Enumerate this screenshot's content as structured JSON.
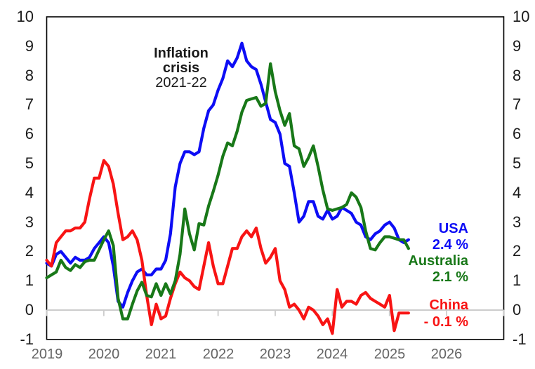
{
  "chart_data": {
    "type": "line",
    "title": "",
    "annotation": {
      "line1": "Inflation",
      "line2": "crisis",
      "line3": "2021-22"
    },
    "x_axis": {
      "frequency": "monthly",
      "start": "2019-01",
      "end": "2025-05",
      "axis_start_year": 2019,
      "axis_end_year": 2027,
      "tick_labels": [
        "2019",
        "2020",
        "2021",
        "2022",
        "2023",
        "2024",
        "2025",
        "2026"
      ]
    },
    "y_axis": {
      "min": -1,
      "max": 10,
      "tick_step": 1,
      "tick_labels": [
        "10",
        "9",
        "8",
        "7",
        "6",
        "5",
        "4",
        "3",
        "2",
        "1",
        "0",
        "-1"
      ],
      "labels_on_both_sides": true
    },
    "grid": "zero-line-only",
    "zero_line_color": "#cccccc",
    "axis_border_color": "#000000",
    "x_label_color": "#646464",
    "y_label_color": "#1a1a1a",
    "legend_position": "end-of-line-labels",
    "series": [
      {
        "key": "usa",
        "name": "USA",
        "color": "#0d0df5",
        "end_label": {
          "name": "USA",
          "value": "2.4 %"
        },
        "values": [
          1.6,
          1.5,
          1.9,
          2.0,
          1.8,
          1.6,
          1.8,
          1.7,
          1.7,
          1.8,
          2.1,
          2.3,
          2.5,
          2.3,
          1.5,
          0.3,
          0.1,
          0.6,
          1.0,
          1.3,
          1.4,
          1.2,
          1.2,
          1.4,
          1.4,
          1.7,
          2.6,
          4.2,
          5.0,
          5.4,
          5.4,
          5.3,
          5.4,
          6.2,
          6.8,
          7.0,
          7.5,
          7.9,
          8.5,
          8.3,
          8.6,
          9.1,
          8.5,
          8.3,
          8.2,
          7.7,
          7.1,
          6.5,
          6.4,
          6.0,
          5.0,
          4.9,
          4.0,
          3.0,
          3.2,
          3.7,
          3.7,
          3.2,
          3.1,
          3.4,
          3.1,
          3.2,
          3.5,
          3.4,
          3.3,
          3.0,
          2.9,
          2.5,
          2.4,
          2.6,
          2.7,
          2.9,
          3.0,
          2.8,
          2.4,
          2.3,
          2.4
        ]
      },
      {
        "key": "china",
        "name": "China",
        "color": "#f81414",
        "end_label": {
          "name": "China",
          "value": "- 0.1 %"
        },
        "values": [
          1.7,
          1.5,
          2.3,
          2.5,
          2.7,
          2.7,
          2.8,
          2.8,
          3.0,
          3.8,
          4.5,
          4.5,
          5.1,
          4.9,
          4.3,
          3.3,
          2.4,
          2.5,
          2.7,
          2.4,
          1.7,
          0.5,
          -0.5,
          0.2,
          -0.3,
          -0.2,
          0.4,
          0.9,
          1.3,
          1.1,
          1.0,
          0.8,
          0.7,
          1.5,
          2.3,
          1.5,
          0.9,
          0.9,
          1.5,
          2.1,
          2.1,
          2.5,
          2.7,
          2.5,
          2.8,
          2.1,
          1.6,
          1.8,
          2.1,
          1.0,
          0.7,
          0.1,
          0.2,
          0.0,
          -0.3,
          0.1,
          0.0,
          -0.2,
          -0.5,
          -0.3,
          -0.8,
          0.7,
          0.1,
          0.3,
          0.3,
          0.2,
          0.5,
          0.6,
          0.4,
          0.3,
          0.2,
          0.1,
          0.5,
          -0.7,
          -0.1,
          -0.1,
          -0.1
        ]
      },
      {
        "key": "australia",
        "name": "Australia",
        "color": "#187818",
        "end_label": {
          "name": "Australia",
          "value": "2.1 %"
        },
        "values": [
          1.1,
          1.2,
          1.3,
          1.7,
          1.45,
          1.35,
          1.55,
          1.45,
          1.65,
          1.7,
          1.7,
          2.05,
          2.4,
          2.7,
          2.2,
          0.4,
          -0.3,
          -0.3,
          0.2,
          0.65,
          0.95,
          0.5,
          0.45,
          0.9,
          0.5,
          0.9,
          0.55,
          1.0,
          1.9,
          3.45,
          2.6,
          2.05,
          2.95,
          2.9,
          3.55,
          4.05,
          4.6,
          5.25,
          5.7,
          5.6,
          6.1,
          6.75,
          7.15,
          7.2,
          7.25,
          6.95,
          7.05,
          8.4,
          7.45,
          6.8,
          6.3,
          6.7,
          5.6,
          5.5,
          4.9,
          5.2,
          5.6,
          4.9,
          4.1,
          3.45,
          3.4,
          3.45,
          3.5,
          3.6,
          4.0,
          3.85,
          3.5,
          2.7,
          2.1,
          2.05,
          2.3,
          2.5,
          2.5,
          2.45,
          2.4,
          2.4,
          2.1
        ]
      }
    ]
  }
}
